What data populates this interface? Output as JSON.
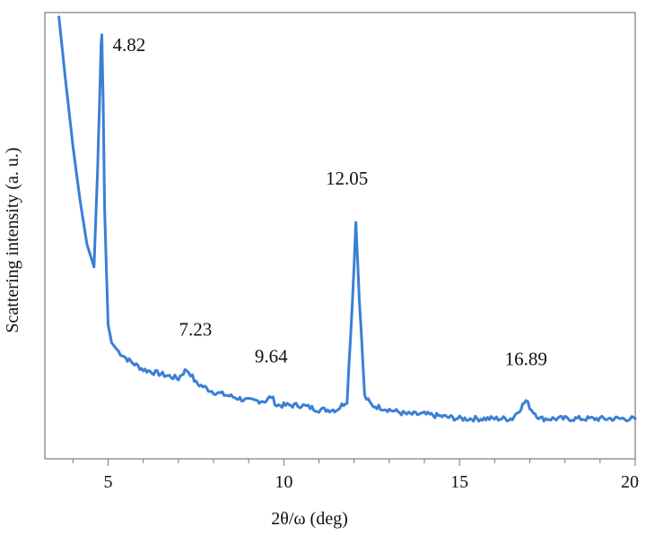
{
  "chart_data": {
    "type": "line",
    "title": "",
    "xlabel": "2θ/ω (deg)",
    "ylabel": "Scattering intensity (a. u.)",
    "xlim": [
      3.2,
      20
    ],
    "ylim": [
      0,
      100
    ],
    "x_ticks": [
      5,
      10,
      15,
      20
    ],
    "grid": false,
    "legend": "none",
    "line_color": "#3a7fd5",
    "series": [
      {
        "x": [
          3.6,
          3.8,
          4.0,
          4.2,
          4.4,
          4.6,
          4.7,
          4.75,
          4.8,
          4.82,
          4.86,
          4.9,
          5.0,
          5.1,
          5.3,
          5.6,
          6.0,
          6.5,
          7.0,
          7.1,
          7.23,
          7.35,
          7.5,
          8.0,
          8.5,
          9.0,
          9.5,
          9.64,
          9.8,
          10.5,
          11.0,
          11.5,
          11.8,
          11.95,
          12.05,
          12.15,
          12.3,
          12.5,
          13.0,
          13.5,
          14.0,
          15.0,
          16.0,
          16.5,
          16.7,
          16.89,
          17.05,
          17.3,
          18.0,
          19.0,
          20.0
        ],
        "y": [
          99,
          84,
          70,
          58,
          48,
          43,
          65,
          78,
          93,
          95,
          80,
          56,
          30,
          26,
          24,
          22,
          20,
          19,
          18,
          19,
          20,
          19,
          17,
          15,
          14,
          13,
          13,
          14,
          12,
          12,
          11,
          11,
          13,
          35,
          53,
          36,
          14,
          12,
          11,
          10,
          10,
          9,
          9,
          9,
          11,
          13,
          11,
          9,
          9,
          9,
          9
        ]
      }
    ],
    "annotations": [
      {
        "text": "4.82",
        "x": 4.82,
        "y": 95
      },
      {
        "text": "7.23",
        "x": 7.23,
        "y": 20
      },
      {
        "text": "9.64",
        "x": 9.64,
        "y": 14
      },
      {
        "text": "12.05",
        "x": 12.05,
        "y": 53
      },
      {
        "text": "16.89",
        "x": 16.89,
        "y": 13
      }
    ]
  }
}
